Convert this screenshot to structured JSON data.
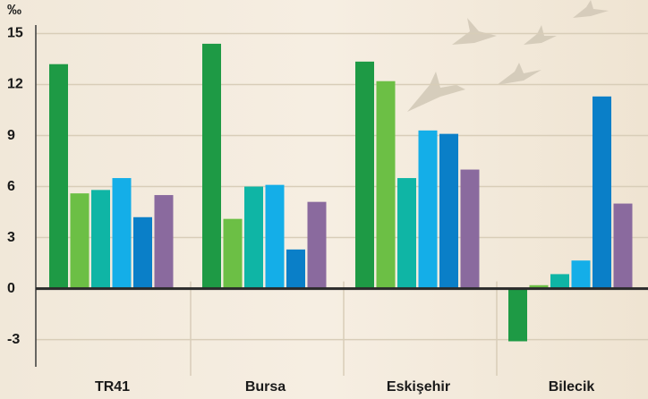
{
  "chart_data": {
    "type": "bar",
    "y_label": "‰",
    "categories": [
      "TR41",
      "Bursa",
      "Eskişehir",
      "Bilecik"
    ],
    "series": [
      {
        "color": "#1e9a45",
        "values": [
          13.2,
          14.4,
          13.35,
          -3.1
        ]
      },
      {
        "color": "#6cbf45",
        "values": [
          5.6,
          4.1,
          12.2,
          0.2
        ]
      },
      {
        "color": "#0fb5a5",
        "values": [
          5.8,
          6.0,
          6.5,
          0.85
        ]
      },
      {
        "color": "#14aee8",
        "values": [
          6.5,
          6.1,
          9.3,
          1.65
        ]
      },
      {
        "color": "#0a7fc8",
        "values": [
          4.2,
          2.3,
          9.1,
          11.3
        ]
      },
      {
        "color": "#8a6a9e",
        "values": [
          5.5,
          5.1,
          7.0,
          5.0
        ]
      }
    ],
    "ylim": [
      -4.6,
      15.5
    ],
    "yticks": [
      -3,
      0,
      3,
      6,
      9,
      12,
      15
    ],
    "grid": true
  }
}
